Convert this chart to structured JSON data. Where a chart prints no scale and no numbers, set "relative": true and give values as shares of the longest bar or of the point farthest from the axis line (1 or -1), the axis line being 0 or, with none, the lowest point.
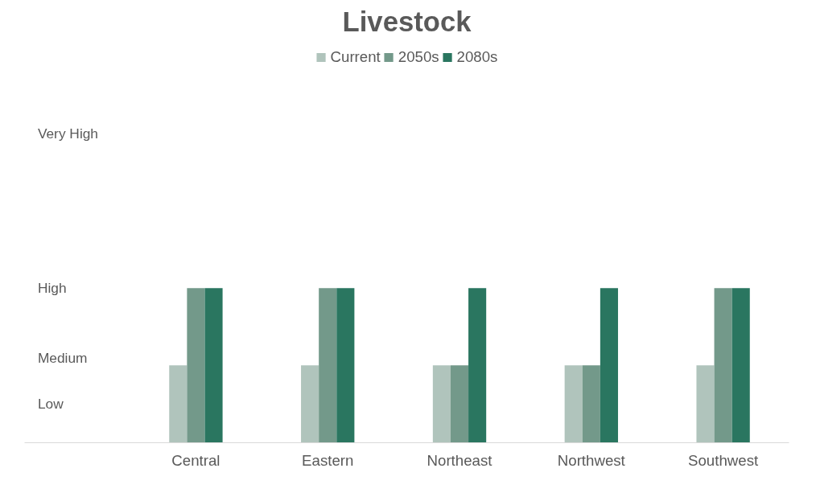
{
  "chart_data": {
    "type": "bar",
    "title": "Livestock",
    "relative": true,
    "categories": [
      "Central",
      "Eastern",
      "Northeast",
      "Northwest",
      "Southwest"
    ],
    "series": [
      {
        "name": "Current",
        "color": "#b0c4bc",
        "values": [
          0.5,
          0.5,
          0.5,
          0.5,
          0.5
        ]
      },
      {
        "name": "2050s",
        "color": "#73998a",
        "values": [
          1,
          1,
          0.5,
          0.5,
          1
        ]
      },
      {
        "name": "2080s",
        "color": "#2a7660",
        "values": [
          1,
          1,
          1,
          1,
          1
        ]
      }
    ],
    "annotations": [
      "Very High",
      "High",
      "Medium",
      "Low"
    ],
    "grid": false,
    "legend": "top"
  }
}
